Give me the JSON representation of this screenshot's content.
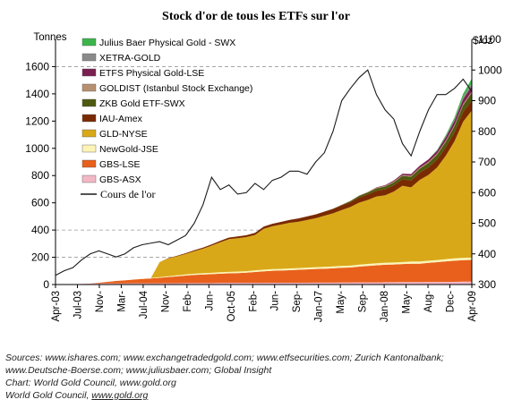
{
  "chart_data": {
    "type": "area",
    "title": "Stock d'or de tous les ETFs sur l'or",
    "left_axis_label": "Tonnes",
    "right_axis_label": "$/oz",
    "left_ylim": [
      0,
      1800
    ],
    "left_ticks": [
      0,
      200,
      400,
      600,
      800,
      1000,
      1200,
      1400,
      1600
    ],
    "right_ylim": [
      300,
      1100
    ],
    "right_ticks": [
      300,
      400,
      500,
      600,
      700,
      800,
      900,
      1000,
      1100
    ],
    "x_labels": [
      "Apr-03",
      "Jul-03",
      "Nov-",
      "Mar-",
      "Jul-04",
      "Nov-",
      "Feb-",
      "Jun-",
      "Oct-05",
      "Feb-",
      "Jun-",
      "Sep-",
      "Jan-07",
      "May-",
      "Sep-",
      "Jan-08",
      "May-",
      "Aug-",
      "Dec-",
      "Apr-09"
    ],
    "legend_position": "top-left",
    "grid_dashed_levels_tonnes": [
      200,
      400,
      1600
    ],
    "series": [
      {
        "name": "GBS-ASX",
        "color": "#f2b8c6",
        "values": [
          0,
          0,
          0,
          5,
          7,
          8,
          8,
          8,
          8,
          9,
          9,
          9,
          9,
          10,
          10,
          11,
          11,
          11,
          11,
          12,
          12,
          12,
          12,
          12,
          12,
          13,
          13,
          13,
          13,
          13,
          14,
          14,
          14,
          15,
          15,
          16,
          16,
          16,
          17,
          17,
          18,
          18,
          18,
          19,
          19,
          20,
          20,
          21,
          21
        ]
      },
      {
        "name": "GBS-LSE",
        "color": "#e8601c",
        "values": [
          0,
          0,
          0,
          0,
          0,
          5,
          12,
          18,
          22,
          27,
          32,
          35,
          40,
          45,
          50,
          55,
          60,
          62,
          65,
          68,
          70,
          72,
          75,
          80,
          85,
          88,
          90,
          92,
          95,
          98,
          100,
          102,
          105,
          108,
          110,
          115,
          120,
          125,
          128,
          130,
          132,
          135,
          135,
          140,
          145,
          150,
          155,
          158,
          160
        ]
      },
      {
        "name": "NewGold-JSE",
        "color": "#fbf4b6",
        "values": [
          0,
          0,
          0,
          0,
          0,
          0,
          0,
          0,
          0,
          0,
          2,
          4,
          5,
          6,
          7,
          8,
          9,
          10,
          10,
          10,
          11,
          11,
          11,
          12,
          12,
          12,
          12,
          13,
          13,
          13,
          13,
          14,
          14,
          14,
          14,
          15,
          15,
          15,
          15,
          15,
          15,
          16,
          16,
          16,
          16,
          16,
          17,
          17,
          17
        ]
      },
      {
        "name": "GLD-NYSE",
        "color": "#d9a818",
        "values": [
          0,
          0,
          0,
          0,
          0,
          0,
          0,
          0,
          0,
          0,
          0,
          0,
          110,
          130,
          140,
          150,
          165,
          180,
          200,
          220,
          240,
          245,
          250,
          260,
          300,
          315,
          325,
          335,
          340,
          350,
          360,
          375,
          390,
          410,
          430,
          455,
          470,
          490,
          495,
          520,
          560,
          545,
          600,
          630,
          680,
          760,
          860,
          1000,
          1080
        ]
      },
      {
        "name": "IAU-Amex",
        "color": "#7a2a00",
        "values": [
          0,
          0,
          0,
          0,
          0,
          0,
          0,
          0,
          0,
          0,
          0,
          0,
          0,
          3,
          4,
          6,
          7,
          8,
          9,
          11,
          12,
          13,
          14,
          15,
          16,
          18,
          20,
          22,
          24,
          26,
          28,
          30,
          32,
          34,
          36,
          38,
          40,
          42,
          44,
          46,
          48,
          50,
          52,
          55,
          58,
          62,
          66,
          70,
          75
        ]
      },
      {
        "name": "ZKB Gold ETF-SWX",
        "color": "#4e5a10",
        "values": [
          0,
          0,
          0,
          0,
          0,
          0,
          0,
          0,
          0,
          0,
          0,
          0,
          0,
          0,
          0,
          0,
          0,
          0,
          0,
          0,
          0,
          0,
          0,
          0,
          0,
          0,
          0,
          0,
          0,
          0,
          0,
          0,
          2,
          4,
          8,
          12,
          15,
          18,
          20,
          22,
          25,
          28,
          30,
          33,
          36,
          40,
          45,
          50,
          55
        ]
      },
      {
        "name": "GOLDIST (Istanbul Stock Exchange)",
        "color": "#b89070",
        "values": [
          0,
          0,
          0,
          0,
          0,
          0,
          0,
          0,
          0,
          0,
          0,
          0,
          0,
          0,
          0,
          0,
          0,
          0,
          0,
          0,
          0,
          0,
          0,
          0,
          0,
          0,
          0,
          0,
          0,
          0,
          0,
          0,
          0,
          1,
          2,
          3,
          4,
          5,
          5,
          6,
          6,
          7,
          7,
          8,
          8,
          9,
          9,
          10,
          10
        ]
      },
      {
        "name": "ETFS Physical Gold-LSE",
        "color": "#7a2050",
        "values": [
          0,
          0,
          0,
          0,
          0,
          0,
          0,
          0,
          0,
          0,
          0,
          0,
          0,
          0,
          0,
          0,
          0,
          0,
          0,
          0,
          0,
          0,
          0,
          0,
          0,
          0,
          0,
          0,
          0,
          0,
          0,
          0,
          0,
          0,
          0,
          0,
          0,
          3,
          5,
          8,
          10,
          12,
          15,
          18,
          20,
          25,
          30,
          35,
          40
        ]
      },
      {
        "name": "XETRA-GOLD",
        "color": "#8a8a8a",
        "values": [
          0,
          0,
          0,
          0,
          0,
          0,
          0,
          0,
          0,
          0,
          0,
          0,
          0,
          0,
          0,
          0,
          0,
          0,
          0,
          0,
          0,
          0,
          0,
          0,
          0,
          0,
          0,
          0,
          0,
          0,
          0,
          0,
          0,
          0,
          0,
          0,
          0,
          0,
          0,
          0,
          0,
          0,
          0,
          0,
          2,
          5,
          10,
          15,
          20
        ]
      },
      {
        "name": "Julius Baer Physical Gold - SWX",
        "color": "#3cb44b",
        "values": [
          0,
          0,
          0,
          0,
          0,
          0,
          0,
          0,
          0,
          0,
          0,
          0,
          0,
          0,
          0,
          0,
          0,
          0,
          0,
          0,
          0,
          0,
          0,
          0,
          0,
          0,
          0,
          0,
          0,
          0,
          0,
          0,
          0,
          0,
          0,
          0,
          0,
          0,
          0,
          0,
          0,
          0,
          0,
          0,
          5,
          10,
          15,
          25,
          35
        ]
      }
    ],
    "gold_price": {
      "name": "Cours de l'or",
      "axis": "right",
      "color": "#1a1a1a",
      "values": [
        330,
        345,
        355,
        380,
        400,
        410,
        400,
        390,
        400,
        420,
        430,
        435,
        440,
        430,
        445,
        460,
        500,
        560,
        650,
        610,
        625,
        595,
        600,
        630,
        610,
        640,
        650,
        670,
        670,
        660,
        700,
        730,
        800,
        900,
        940,
        975,
        1000,
        920,
        870,
        840,
        760,
        720,
        800,
        870,
        920,
        920,
        940,
        970,
        930
      ]
    }
  },
  "sources": {
    "line1": "Sources: www.ishares.com; www.exchangetradedgold.com; www.etfsecurities.com; Zurich Kantonalbank;",
    "line2": "www.Deutsche-Boerse.com; www.juliusbaer.com; Global Insight",
    "line3": "Chart: World Gold Council, www.gold.org",
    "line4_prefix": "World Gold Council, ",
    "line4_link": "www.gold.org"
  }
}
